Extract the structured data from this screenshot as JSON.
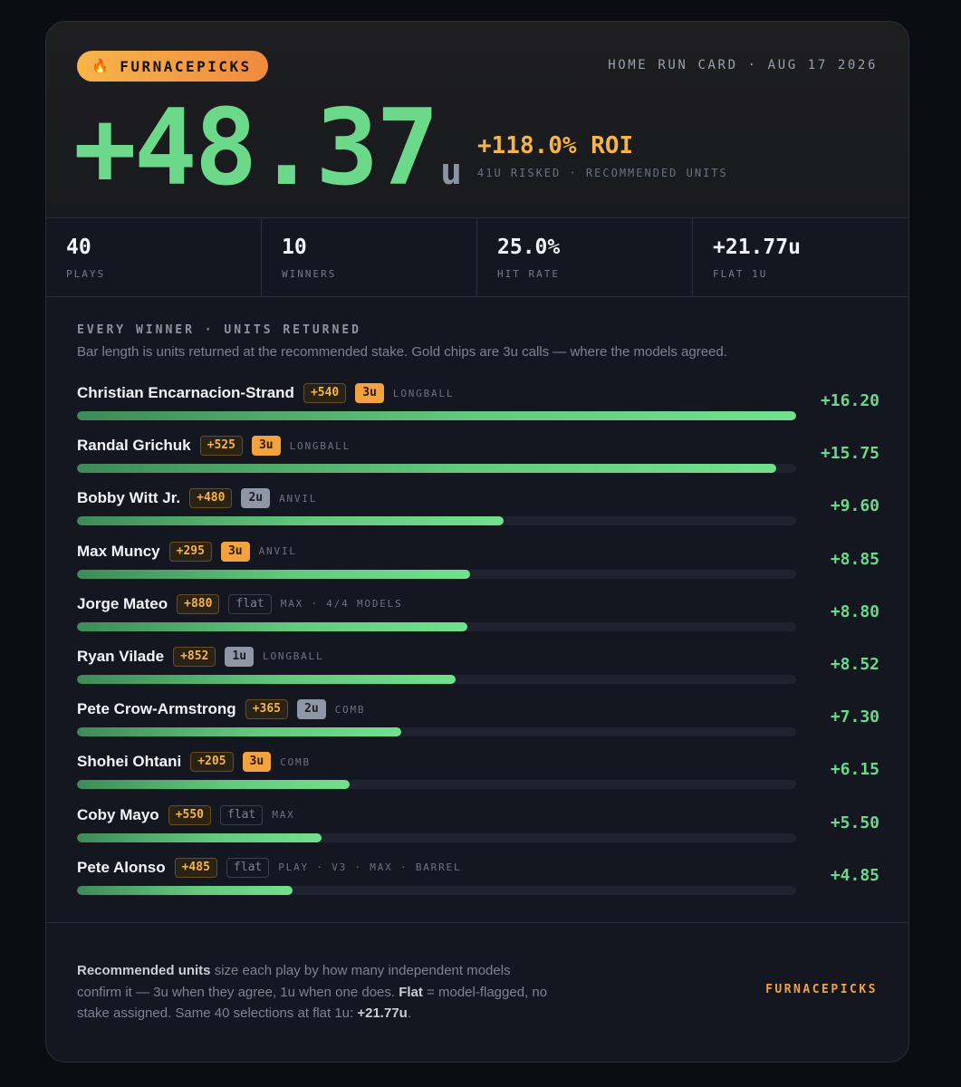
{
  "brand": {
    "icon": "flame-icon",
    "glyph": "🔥",
    "name": "FURNACEPICKS"
  },
  "header": {
    "title": "HOME RUN CARD · AUG 17 2026"
  },
  "hero": {
    "units": "+48.37",
    "unit_suffix": "u",
    "roi": "+118.0% ROI",
    "risk_line": "41U RISKED · RECOMMENDED UNITS"
  },
  "stats": [
    {
      "value": "40",
      "label": "PLAYS"
    },
    {
      "value": "10",
      "label": "WINNERS"
    },
    {
      "value": "25.0%",
      "label": "HIT RATE"
    },
    {
      "value": "+21.77u",
      "label": "FLAT 1U"
    }
  ],
  "section": {
    "title": "EVERY WINNER · UNITS RETURNED",
    "subtitle": "Bar length is units returned at the recommended stake. Gold chips are 3u calls — where the models agreed."
  },
  "winners": [
    {
      "name": "Christian Encarnacion-Strand",
      "odds": "+540",
      "stake": "3u",
      "stake_kind": "u3",
      "model": "LONGBALL",
      "returned": "+16.20",
      "value": 16.2
    },
    {
      "name": "Randal Grichuk",
      "odds": "+525",
      "stake": "3u",
      "stake_kind": "u3",
      "model": "LONGBALL",
      "returned": "+15.75",
      "value": 15.75
    },
    {
      "name": "Bobby Witt Jr.",
      "odds": "+480",
      "stake": "2u",
      "stake_kind": "u2",
      "model": "ANVIL",
      "returned": "+9.60",
      "value": 9.6
    },
    {
      "name": "Max Muncy",
      "odds": "+295",
      "stake": "3u",
      "stake_kind": "u3",
      "model": "ANVIL",
      "returned": "+8.85",
      "value": 8.85
    },
    {
      "name": "Jorge Mateo",
      "odds": "+880",
      "stake": "flat",
      "stake_kind": "uflat",
      "model": "MAX · 4/4 MODELS",
      "returned": "+8.80",
      "value": 8.8
    },
    {
      "name": "Ryan Vilade",
      "odds": "+852",
      "stake": "1u",
      "stake_kind": "u1",
      "model": "LONGBALL",
      "returned": "+8.52",
      "value": 8.52
    },
    {
      "name": "Pete Crow-Armstrong",
      "odds": "+365",
      "stake": "2u",
      "stake_kind": "u2",
      "model": "COMB",
      "returned": "+7.30",
      "value": 7.3
    },
    {
      "name": "Shohei Ohtani",
      "odds": "+205",
      "stake": "3u",
      "stake_kind": "u3",
      "model": "COMB",
      "returned": "+6.15",
      "value": 6.15
    },
    {
      "name": "Coby Mayo",
      "odds": "+550",
      "stake": "flat",
      "stake_kind": "uflat",
      "model": "MAX",
      "returned": "+5.50",
      "value": 5.5
    },
    {
      "name": "Pete Alonso",
      "odds": "+485",
      "stake": "flat",
      "stake_kind": "uflat",
      "model": "PLAY · V3 · MAX · BARREL",
      "returned": "+4.85",
      "value": 4.85
    }
  ],
  "bar_scale_max": 16.2,
  "footer": {
    "term1": "Recommended units",
    "text1": " size each play by how many independent models confirm it — 3u when they agree, 1u when one does. ",
    "term2": "Flat",
    "text2": " = model-flagged, no stake assigned. Same 40 selections at flat 1u: ",
    "flat_total": "+21.77u",
    "end": ".",
    "brand": "FURNACEPICKS"
  }
}
